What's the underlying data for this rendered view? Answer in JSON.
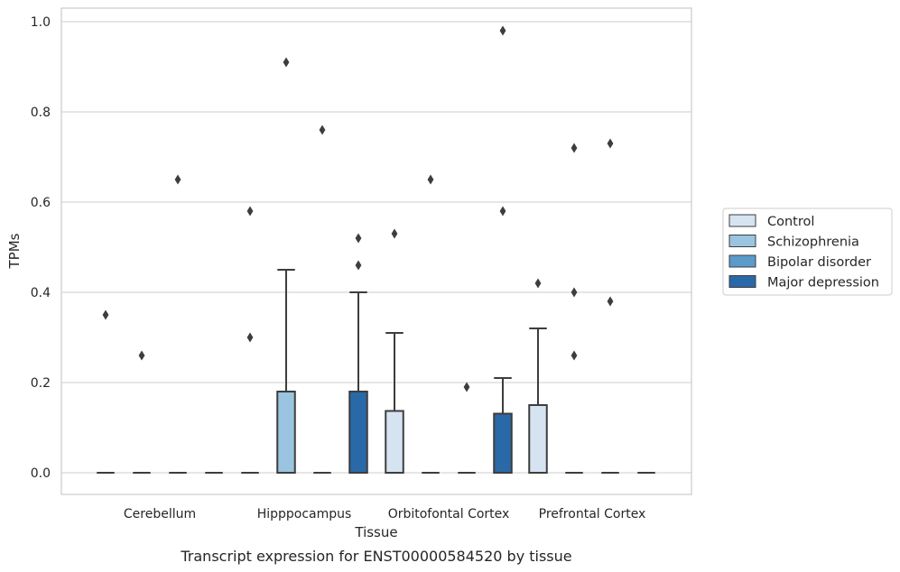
{
  "chart_data": {
    "type": "box",
    "caption": "Transcript expression for ENST00000584520 by tissue",
    "xlabel": "Tissue",
    "ylabel": "TPMs",
    "ylim": [
      -0.045,
      1.03
    ],
    "yticks": [
      0.0,
      0.2,
      0.4,
      0.6,
      0.8,
      1.0
    ],
    "ytick_labels": [
      "0.0",
      "0.2",
      "0.4",
      "0.6",
      "0.8",
      "1.0"
    ],
    "grid": true,
    "legend_position": "right",
    "categories": [
      "Cerebellum",
      "Hipppocampus",
      "Orbitofontal Cortex",
      "Prefrontal Cortex"
    ],
    "series": [
      {
        "name": "Control",
        "color": "#d6e4f2",
        "boxes": [
          {
            "q1": 0,
            "median": 0,
            "q3": 0,
            "whisker_low": 0,
            "whisker_high": 0,
            "outliers": [
              0.35
            ]
          },
          {
            "q1": 0,
            "median": 0,
            "q3": 0,
            "whisker_low": 0,
            "whisker_high": 0,
            "outliers": [
              0.58,
              0.3
            ]
          },
          {
            "q1": 0,
            "median": 0,
            "q3": 0.137,
            "whisker_low": 0,
            "whisker_high": 0.31,
            "outliers": [
              0.53
            ]
          },
          {
            "q1": 0,
            "median": 0,
            "q3": 0.15,
            "whisker_low": 0,
            "whisker_high": 0.32,
            "outliers": [
              0.42
            ]
          }
        ]
      },
      {
        "name": "Schizophrenia",
        "color": "#9ac4df",
        "boxes": [
          {
            "q1": 0,
            "median": 0,
            "q3": 0,
            "whisker_low": 0,
            "whisker_high": 0,
            "outliers": [
              0.26
            ]
          },
          {
            "q1": 0,
            "median": 0,
            "q3": 0.18,
            "whisker_low": 0,
            "whisker_high": 0.45,
            "outliers": [
              0.91
            ]
          },
          {
            "q1": 0,
            "median": 0,
            "q3": 0,
            "whisker_low": 0,
            "whisker_high": 0,
            "outliers": [
              0.65
            ]
          },
          {
            "q1": 0,
            "median": 0,
            "q3": 0,
            "whisker_low": 0,
            "whisker_high": 0,
            "outliers": [
              0.72,
              0.4,
              0.26
            ]
          }
        ]
      },
      {
        "name": "Bipolar disorder",
        "color": "#5b9bcb",
        "boxes": [
          {
            "q1": 0,
            "median": 0,
            "q3": 0,
            "whisker_low": 0,
            "whisker_high": 0,
            "outliers": [
              0.65
            ]
          },
          {
            "q1": 0,
            "median": 0,
            "q3": 0,
            "whisker_low": 0,
            "whisker_high": 0,
            "outliers": [
              0.76
            ]
          },
          {
            "q1": 0,
            "median": 0,
            "q3": 0,
            "whisker_low": 0,
            "whisker_high": 0,
            "outliers": [
              0.19
            ]
          },
          {
            "q1": 0,
            "median": 0,
            "q3": 0,
            "whisker_low": 0,
            "whisker_high": 0,
            "outliers": [
              0.73,
              0.38
            ]
          }
        ]
      },
      {
        "name": "Major depression",
        "color": "#2a69a8",
        "boxes": [
          {
            "q1": 0,
            "median": 0,
            "q3": 0,
            "whisker_low": 0,
            "whisker_high": 0,
            "outliers": []
          },
          {
            "q1": 0,
            "median": 0,
            "q3": 0.18,
            "whisker_low": 0,
            "whisker_high": 0.4,
            "outliers": [
              0.52,
              0.46
            ]
          },
          {
            "q1": 0,
            "median": 0,
            "q3": 0.131,
            "whisker_low": 0,
            "whisker_high": 0.21,
            "outliers": [
              0.98,
              0.58
            ]
          },
          {
            "q1": 0,
            "median": 0,
            "q3": 0,
            "whisker_low": 0,
            "whisker_high": 0,
            "outliers": []
          }
        ]
      }
    ]
  }
}
